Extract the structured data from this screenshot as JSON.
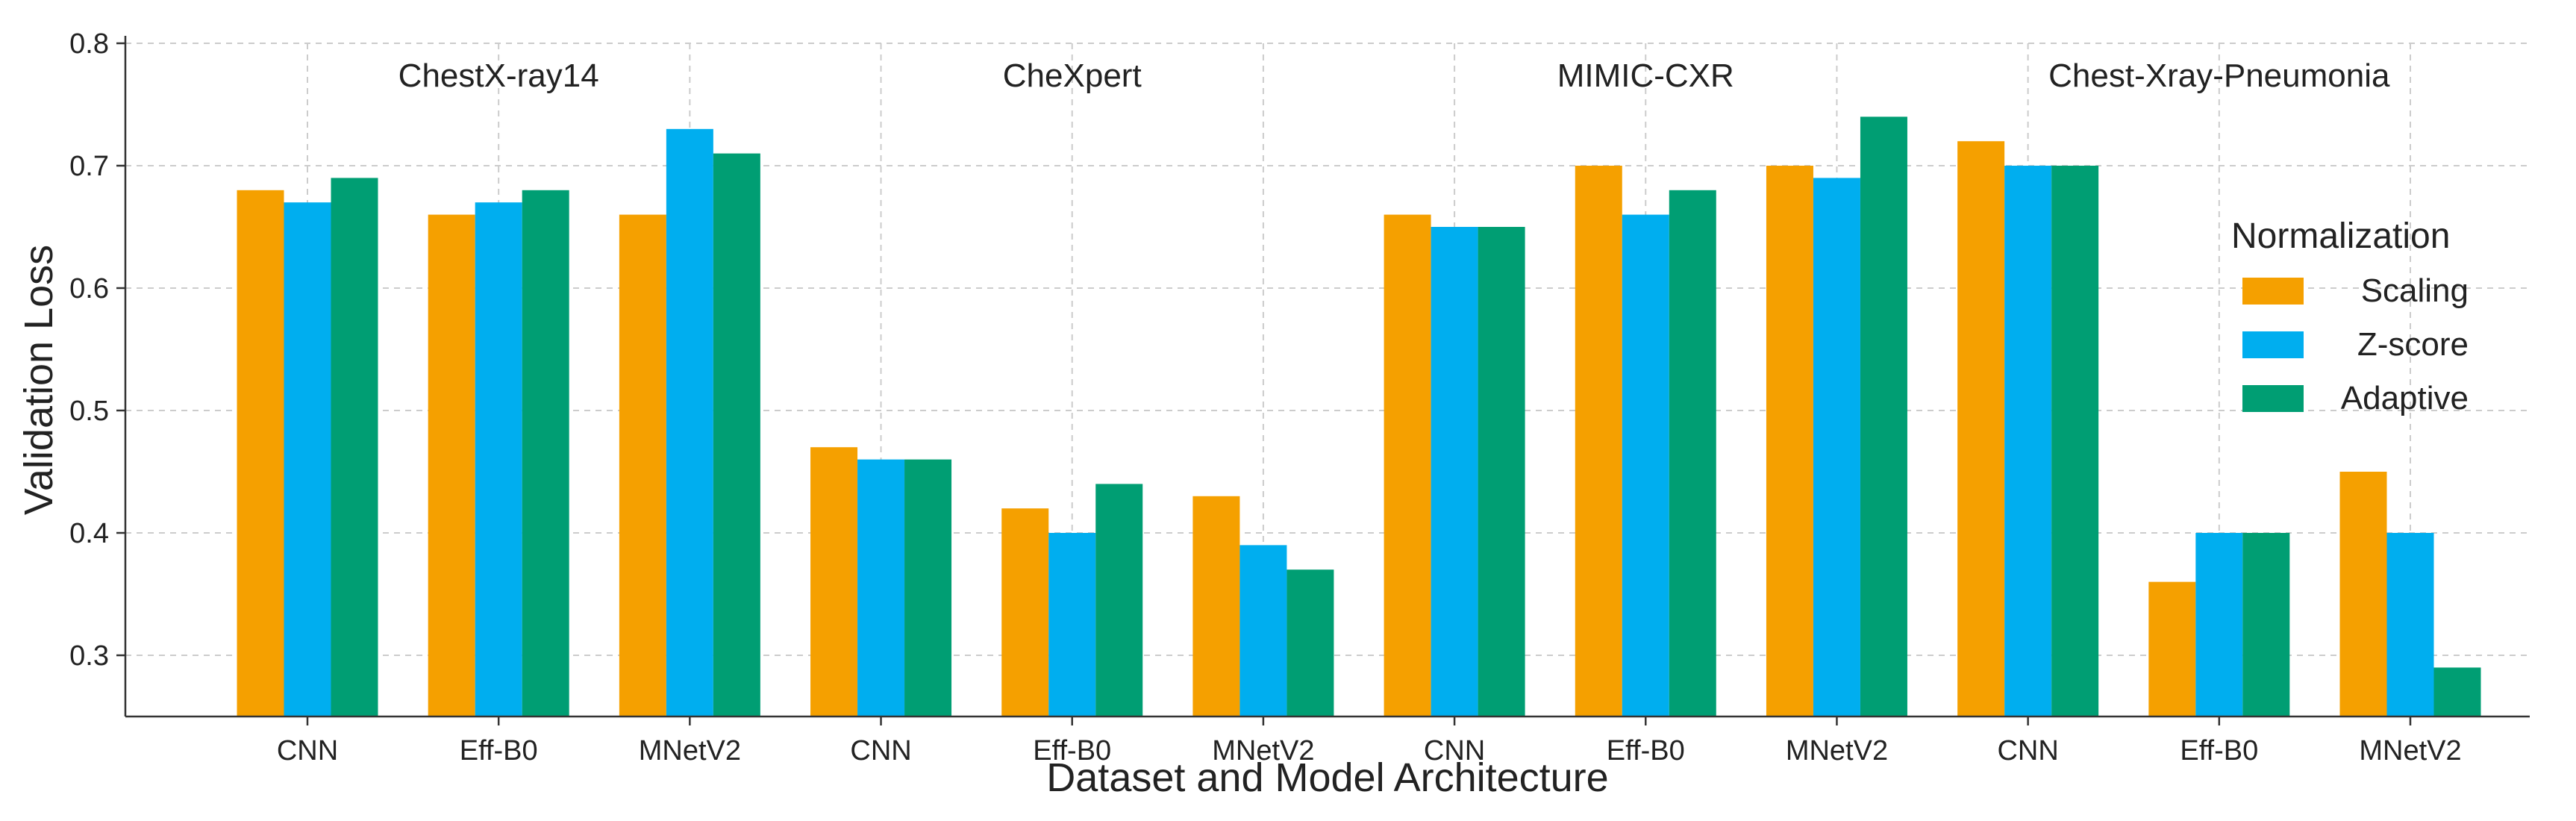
{
  "chart_data": {
    "type": "bar",
    "xlabel": "Dataset and Model Architecture",
    "ylabel": "Validation Loss",
    "ylim": [
      0.25,
      0.8
    ],
    "yticks": [
      "0.3",
      "0.4",
      "0.5",
      "0.6",
      "0.7",
      "0.8"
    ],
    "grid": true,
    "legend": {
      "title": "Normalization",
      "placement": "right"
    },
    "groups": [
      "ChestX-ray14",
      "CheXpert",
      "MIMIC-CXR",
      "Chest-Xray-Pneumonia"
    ],
    "categories": [
      "CNN",
      "Eff-B0",
      "MNetV2",
      "CNN",
      "Eff-B0",
      "MNetV2",
      "CNN",
      "Eff-B0",
      "MNetV2",
      "CNN",
      "Eff-B0",
      "MNetV2"
    ],
    "series": [
      {
        "name": "Scaling",
        "color": "#F5A000",
        "values": [
          0.68,
          0.66,
          0.66,
          0.47,
          0.42,
          0.43,
          0.66,
          0.7,
          0.7,
          0.72,
          0.36,
          0.45
        ]
      },
      {
        "name": "Z-score",
        "color": "#00AEEF",
        "values": [
          0.67,
          0.67,
          0.73,
          0.46,
          0.4,
          0.39,
          0.65,
          0.66,
          0.69,
          0.7,
          0.4,
          0.4
        ]
      },
      {
        "name": "Adaptive",
        "color": "#009E73",
        "values": [
          0.69,
          0.68,
          0.71,
          0.46,
          0.44,
          0.37,
          0.65,
          0.68,
          0.74,
          0.7,
          0.4,
          0.29
        ]
      }
    ]
  }
}
